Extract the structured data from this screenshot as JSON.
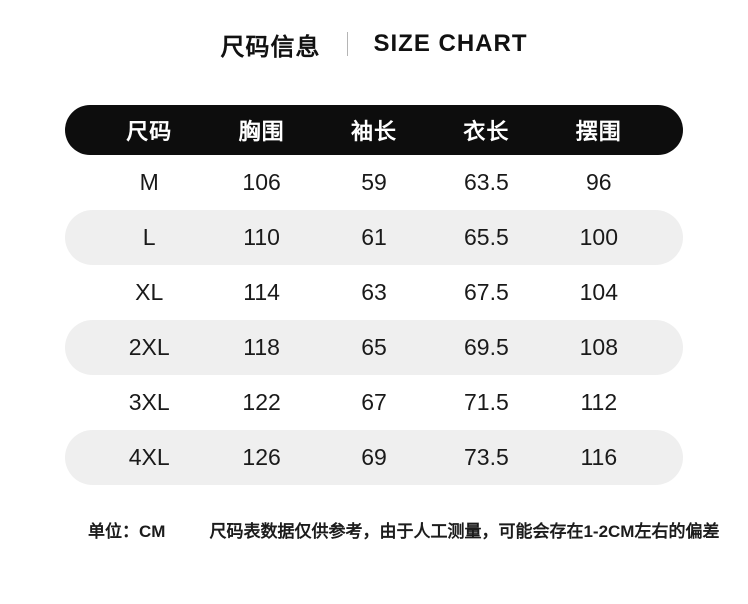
{
  "title": {
    "zh": "尺码信息",
    "en": "SIZE CHART"
  },
  "table": {
    "headers": [
      "尺码",
      "胸围",
      "袖长",
      "衣长",
      "摆围"
    ],
    "rows": [
      {
        "size": "M",
        "values": [
          "106",
          "59",
          "63.5",
          "96"
        ]
      },
      {
        "size": "L",
        "values": [
          "110",
          "61",
          "65.5",
          "100"
        ]
      },
      {
        "size": "XL",
        "values": [
          "114",
          "63",
          "67.5",
          "104"
        ]
      },
      {
        "size": "2XL",
        "values": [
          "118",
          "65",
          "69.5",
          "108"
        ]
      },
      {
        "size": "3XL",
        "values": [
          "122",
          "67",
          "71.5",
          "112"
        ]
      },
      {
        "size": "4XL",
        "values": [
          "126",
          "69",
          "73.5",
          "116"
        ]
      }
    ]
  },
  "footer": {
    "unit_label": "单位：CM",
    "note": "尺码表数据仅供参考，由于人工测量，可能会存在1-2CM左右的偏差"
  },
  "colors": {
    "header_bg": "#0d0d0d",
    "header_text": "#ffffff",
    "row_alt_bg": "#efefef",
    "text": "#1a1a1a",
    "background": "#ffffff"
  },
  "chart_data": {
    "type": "table",
    "title": "尺码信息 | SIZE CHART",
    "unit": "CM",
    "columns": [
      "尺码",
      "胸围",
      "袖长",
      "衣长",
      "摆围"
    ],
    "rows": [
      [
        "M",
        106,
        59,
        63.5,
        96
      ],
      [
        "L",
        110,
        61,
        65.5,
        100
      ],
      [
        "XL",
        114,
        63,
        67.5,
        104
      ],
      [
        "2XL",
        118,
        65,
        69.5,
        108
      ],
      [
        "3XL",
        122,
        67,
        71.5,
        112
      ],
      [
        "4XL",
        126,
        69,
        73.5,
        116
      ]
    ],
    "note": "尺码表数据仅供参考，由于人工测量，可能会存在1-2CM左右的偏差"
  }
}
